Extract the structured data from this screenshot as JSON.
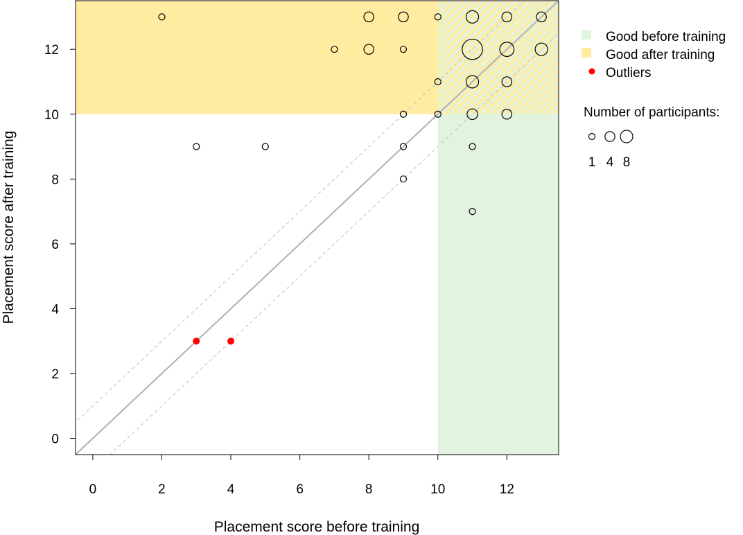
{
  "chart_data": {
    "type": "scatter",
    "title": "",
    "xlabel": "Placement score before training",
    "ylabel": "Placement score after training",
    "xlim": [
      -0.5,
      13.5
    ],
    "ylim": [
      -0.5,
      13.5
    ],
    "xticks": [
      0,
      2,
      4,
      6,
      8,
      10,
      12
    ],
    "yticks": [
      0,
      2,
      4,
      6,
      8,
      10,
      12
    ],
    "threshold": 10,
    "reference_lines": [
      {
        "name": "identity",
        "slope": 1,
        "intercept": 0,
        "style": "solid"
      },
      {
        "name": "upper-band",
        "slope": 1,
        "intercept": 1,
        "style": "dashed"
      },
      {
        "name": "lower-band",
        "slope": 1,
        "intercept": -1,
        "style": "dashed"
      }
    ],
    "points": [
      {
        "x": 2,
        "y": 13,
        "n": 1
      },
      {
        "x": 8,
        "y": 13,
        "n": 4
      },
      {
        "x": 9,
        "y": 13,
        "n": 4
      },
      {
        "x": 10,
        "y": 13,
        "n": 1
      },
      {
        "x": 11,
        "y": 13,
        "n": 8
      },
      {
        "x": 12,
        "y": 13,
        "n": 4
      },
      {
        "x": 13,
        "y": 13,
        "n": 4
      },
      {
        "x": 7,
        "y": 12,
        "n": 1
      },
      {
        "x": 8,
        "y": 12,
        "n": 4
      },
      {
        "x": 9,
        "y": 12,
        "n": 1
      },
      {
        "x": 11,
        "y": 12,
        "n": 35
      },
      {
        "x": 12,
        "y": 12,
        "n": 12
      },
      {
        "x": 13,
        "y": 12,
        "n": 8
      },
      {
        "x": 10,
        "y": 11,
        "n": 1
      },
      {
        "x": 11,
        "y": 11,
        "n": 8
      },
      {
        "x": 12,
        "y": 11,
        "n": 4
      },
      {
        "x": 9,
        "y": 10,
        "n": 1
      },
      {
        "x": 10,
        "y": 10,
        "n": 1
      },
      {
        "x": 11,
        "y": 10,
        "n": 5
      },
      {
        "x": 12,
        "y": 10,
        "n": 4
      },
      {
        "x": 3,
        "y": 9,
        "n": 1
      },
      {
        "x": 5,
        "y": 9,
        "n": 1
      },
      {
        "x": 9,
        "y": 9,
        "n": 1
      },
      {
        "x": 11,
        "y": 9,
        "n": 1
      },
      {
        "x": 9,
        "y": 8,
        "n": 1
      },
      {
        "x": 11,
        "y": 7,
        "n": 1
      }
    ],
    "outliers": [
      {
        "x": 3,
        "y": 3
      },
      {
        "x": 4,
        "y": 3
      }
    ],
    "legend": {
      "placement": "right",
      "entries": [
        "Good before training",
        "Good after training",
        "Outliers"
      ],
      "size_title": "Number of participants:",
      "size_values": [
        1,
        4,
        8
      ]
    },
    "colors": {
      "good_before": "#e2f3df",
      "good_after": "#ffeca0",
      "outlier": "#ff0000",
      "identity": "#b0b0b0",
      "band": "#c0c0c0"
    }
  }
}
